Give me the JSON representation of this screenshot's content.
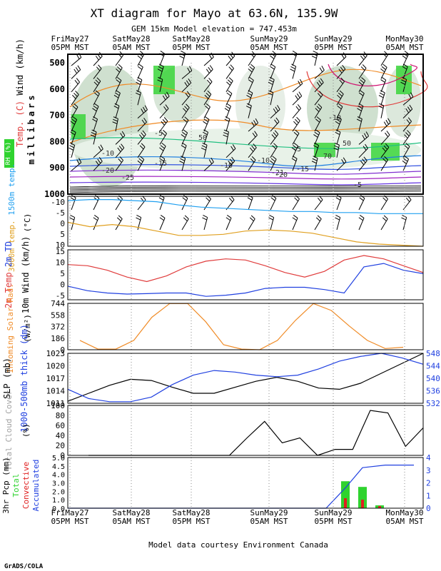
{
  "header": {
    "title": "XT diagram for Mayo at 63.6N, 135.9W",
    "subtitle": "GEM 15km Model elevation = 747.453m"
  },
  "footer": {
    "credit": "Model data courtesy Environment Canada",
    "brand": "GrADS/COLA"
  },
  "time_axis": {
    "times": [
      {
        "day": "FriMay27",
        "time": "05PM MST"
      },
      {
        "day": "SatMay28",
        "time": "05AM MST"
      },
      {
        "day": "SatMay28",
        "time": "05PM MST"
      },
      {
        "day": "SunMay29",
        "time": "05AM MST"
      },
      {
        "day": "SunMay29",
        "time": "05PM MST"
      },
      {
        "day": "MonMay30",
        "time": "05AM MST"
      }
    ]
  },
  "colors": {
    "temp_2m": "#e03c3c",
    "td_2m": "#2040e0",
    "solar": "#f08c28",
    "slp": "#000000",
    "thickness": "#2040e0",
    "cloud": "#000000",
    "t3000": "#e0a020",
    "t1500": "#20a0f0",
    "rh_green": "#2fd32f",
    "conv_pcp": "#e02020",
    "accum": "#2040e0"
  },
  "chart_data": [
    {
      "id": "upper_air",
      "type": "heatmap",
      "ylabel_parts": [
        {
          "text": "Temp. (C)",
          "color": "#e03c3c"
        },
        {
          "text": "Wind (km/h)",
          "color": "#000000"
        }
      ],
      "yunit": "millibars",
      "rh_label": "RH (%)",
      "y_ticks": [
        "500",
        "600",
        "700",
        "800",
        "900",
        "1000"
      ],
      "ylim": [
        1000,
        500
      ],
      "contour_labels": [
        "-10",
        "-5",
        "-5",
        "-10",
        "-15",
        "-20",
        "-25",
        "-5",
        "-10",
        "-15",
        "-20",
        "-21",
        "50",
        "50",
        "70",
        "-10"
      ]
    },
    {
      "id": "temps_aloft",
      "type": "line",
      "ylabel_parts": [
        {
          "text": "3000m temp.",
          "color": "#e0a020"
        },
        {
          "text": "1500m temp.",
          "color": "#20a0f0"
        }
      ],
      "yunit": "(°C)",
      "y_ticks": [
        "-10",
        "-5",
        "0",
        "5",
        "10"
      ],
      "ylim": [
        10,
        -13
      ],
      "series": [
        {
          "name": "1500m temp.",
          "color": "#20a0f0",
          "values": [
            -11,
            -11.5,
            -11.5,
            -11,
            -10.5,
            -9,
            -8,
            -7.5,
            -7,
            -6.5,
            -6,
            -6,
            -5.5,
            -5.5,
            -5,
            -5,
            -5
          ]
        },
        {
          "name": "3000m temp.",
          "color": "#e0a020",
          "values": [
            -1,
            1,
            0,
            1,
            3,
            5,
            5,
            4.5,
            3,
            2.5,
            3,
            4,
            6,
            8,
            9,
            9.5,
            10
          ]
        }
      ]
    },
    {
      "id": "surface",
      "type": "line",
      "ylabel_parts": [
        {
          "text": "2m Temp",
          "color": "#e03c3c"
        },
        {
          "text": "2m TD",
          "color": "#2040e0"
        },
        {
          "text": "10m Wind",
          "color": "#000000"
        },
        {
          "text": "(km/h)",
          "color": "#000000"
        }
      ],
      "y_ticks": [
        "15",
        "10",
        "5",
        "0",
        "-5"
      ],
      "ylim": [
        -7,
        15
      ],
      "series": [
        {
          "name": "2m Temp",
          "color": "#e03c3c",
          "values": [
            8.5,
            8,
            6,
            3,
            1,
            3.5,
            7.5,
            10,
            11,
            10.5,
            8,
            5,
            3,
            5.5,
            10.5,
            12.5,
            11,
            8,
            5
          ]
        },
        {
          "name": "2m TD",
          "color": "#2040e0",
          "values": [
            -1,
            -3,
            -4,
            -4.5,
            -4.3,
            -4,
            -4,
            -5.5,
            -5,
            -4,
            -2,
            -1.5,
            -1.5,
            -2.5,
            -4,
            7.5,
            9,
            6,
            4.5
          ]
        }
      ]
    },
    {
      "id": "solar",
      "type": "line",
      "ylabel_parts": [
        {
          "text": "Incoming",
          "color": "#f08c28"
        },
        {
          "text": "Solar Rad.",
          "color": "#f08c28"
        },
        {
          "text": "(W/m²)",
          "color": "#000000"
        }
      ],
      "y_ticks": [
        "744",
        "558",
        "372",
        "186",
        "0"
      ],
      "ylim": [
        0,
        744
      ],
      "series": [
        {
          "name": "Incoming Solar Rad.",
          "color": "#f08c28",
          "values": [
            150,
            10,
            10,
            150,
            520,
            740,
            740,
            450,
            80,
            10,
            0,
            150,
            470,
            740,
            630,
            380,
            150,
            20,
            40
          ]
        }
      ]
    },
    {
      "id": "pressure",
      "type": "line",
      "ylabel_parts": [
        {
          "text": "SLP (mb)",
          "color": "#000000"
        },
        {
          "text": "1000-500mb",
          "color": "#2040e0"
        },
        {
          "text": "thick (dm)",
          "color": "#2040e0"
        }
      ],
      "y_ticks": [
        "1023",
        "1020",
        "1017",
        "1014",
        "1011"
      ],
      "y_ticks_right": [
        "548",
        "544",
        "540",
        "536",
        "532"
      ],
      "ylim": [
        1010.5,
        1023
      ],
      "ylim_right": [
        532,
        548
      ],
      "series": [
        {
          "name": "SLP (mb)",
          "color": "#000000",
          "values": [
            1011,
            1013,
            1015,
            1016.5,
            1016.2,
            1014.5,
            1013,
            1013,
            1014.5,
            1016,
            1017,
            1016,
            1014.3,
            1014,
            1015.5,
            1018,
            1020.5,
            1023
          ]
        },
        {
          "name": "1000-500mb thick (dm)",
          "color": "#2040e0",
          "values": [
            536.5,
            533.5,
            532.5,
            532.5,
            534,
            538,
            541,
            542.5,
            542,
            541,
            540.5,
            541,
            543,
            545.5,
            547,
            548,
            546.5,
            544.5
          ]
        }
      ]
    },
    {
      "id": "cloud",
      "type": "line",
      "ylabel_parts": [
        {
          "text": "Total Cloud",
          "color": "#a0a0a0"
        },
        {
          "text": "Cover",
          "color": "#a0a0a0"
        },
        {
          "text": "(%)",
          "color": "#000000"
        }
      ],
      "y_ticks": [
        "100",
        "80",
        "60",
        "40",
        "20",
        "0"
      ],
      "ylim": [
        0,
        100
      ],
      "series": [
        {
          "name": "Total Cloud Cover",
          "color": "#000000",
          "values": [
            0,
            0,
            0,
            0,
            0,
            0,
            0,
            0,
            0,
            35,
            68,
            25,
            35,
            0,
            12,
            12,
            90,
            85,
            18,
            55
          ]
        }
      ]
    },
    {
      "id": "precip",
      "type": "bar",
      "ylabel_parts": [
        {
          "text": "3hr Pcp (mm)",
          "color": "#000000"
        },
        {
          "text": "Total",
          "color": "#2fd32f"
        },
        {
          "text": "Convective",
          "color": "#e02020"
        },
        {
          "text": "Accumulated",
          "color": "#2040e0"
        }
      ],
      "y_ticks": [
        "5.0",
        "4.5",
        "4.0",
        "3.0",
        "2.0",
        "1.0",
        "0.0"
      ],
      "y_ticks_right": [
        "4",
        "3",
        "2",
        "1",
        "0"
      ],
      "ylim": [
        0,
        5
      ],
      "ylim_right": [
        0,
        4
      ],
      "series": [
        {
          "name": "Total",
          "color": "#2fd32f",
          "values": [
            1.9,
            1.5,
            0.2
          ]
        },
        {
          "name": "Convective",
          "color": "#e02020",
          "values": [
            0.7,
            0.6,
            0.15
          ]
        },
        {
          "name": "Accumulated",
          "color": "#2040e0",
          "values": [
            0,
            0,
            1.6,
            3.2,
            3.4,
            3.4,
            3.4
          ]
        }
      ]
    }
  ]
}
